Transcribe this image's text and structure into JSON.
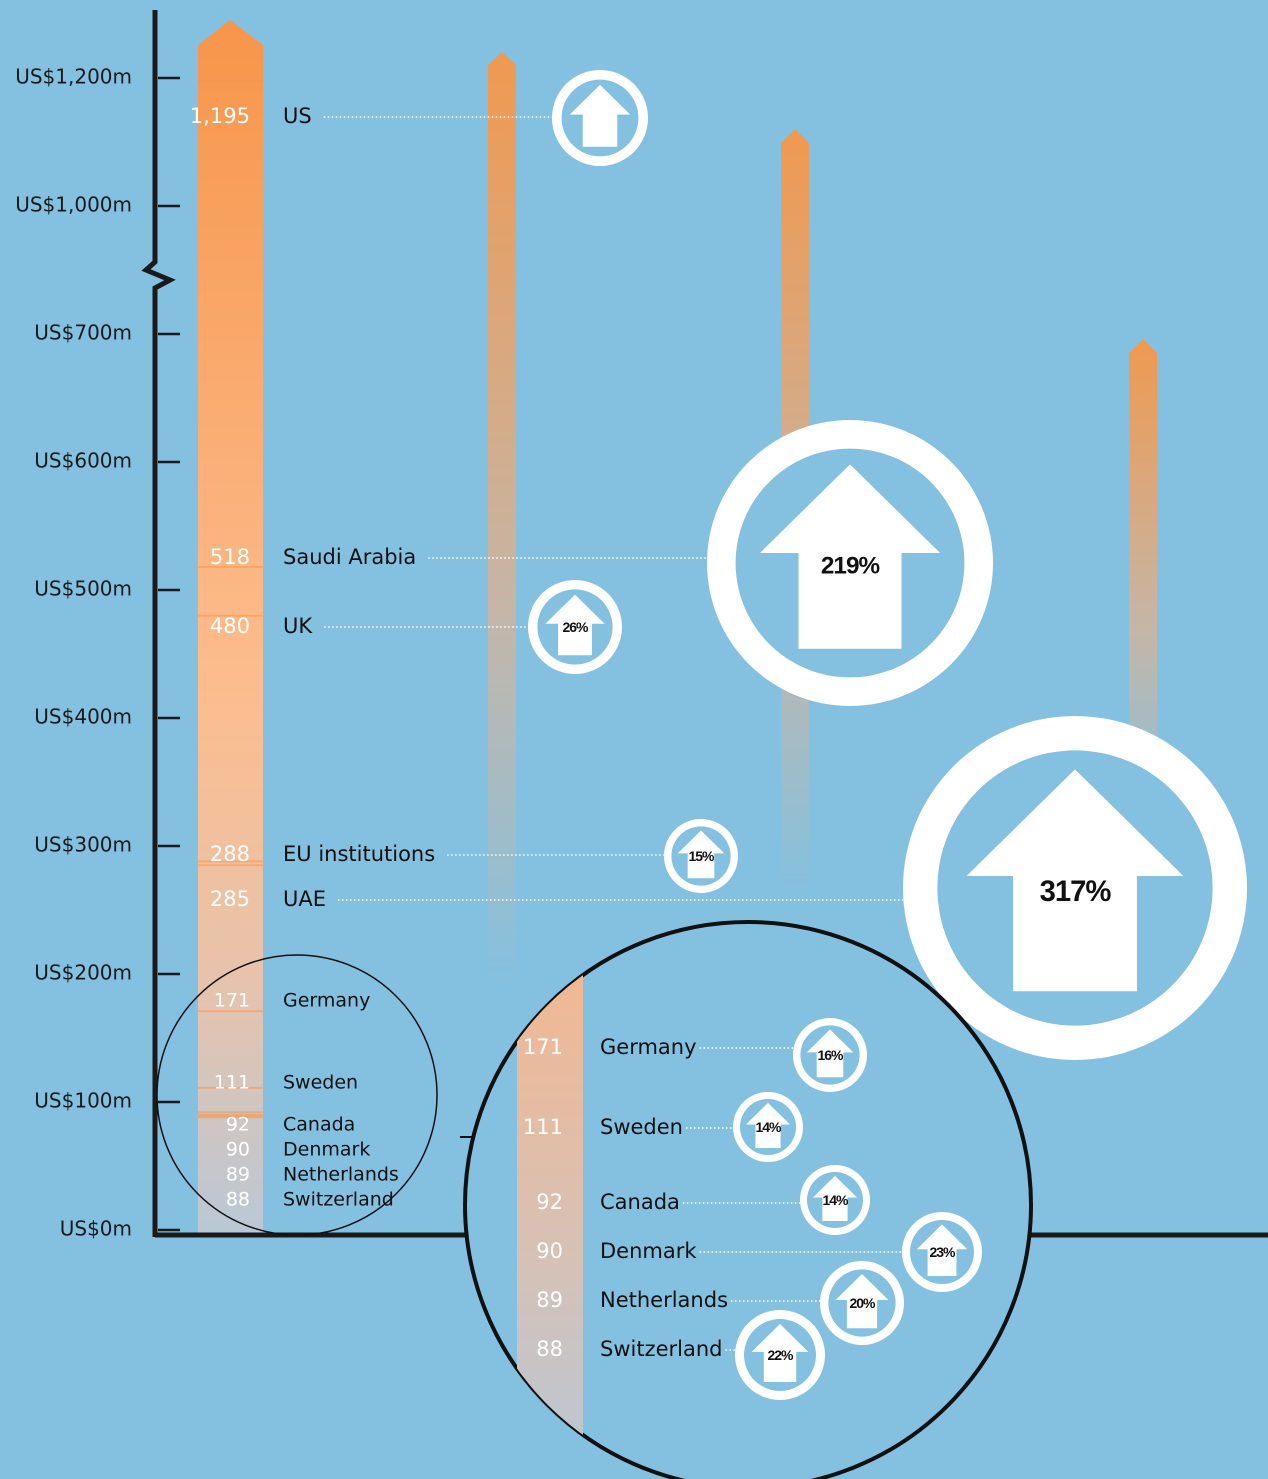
{
  "chart_data": {
    "type": "bar",
    "categories": [
      "US",
      "Saudi Arabia",
      "UK",
      "EU institutions",
      "UAE",
      "Germany",
      "Sweden",
      "Canada",
      "Denmark",
      "Netherlands",
      "Switzerland"
    ],
    "values": [
      1195,
      518,
      480,
      288,
      285,
      171,
      111,
      92,
      90,
      89,
      88
    ],
    "value_labels": [
      "1,195",
      "518",
      "480",
      "288",
      "285",
      "171",
      "111",
      "92",
      "90",
      "89",
      "88"
    ],
    "growth": [
      null,
      219,
      26,
      15,
      317,
      16,
      14,
      14,
      23,
      20,
      22
    ],
    "growth_labels": [
      null,
      "219%",
      "26%",
      "15%",
      "317%",
      "16%",
      "14%",
      "14%",
      "23%",
      "20%",
      "22%"
    ],
    "color": "#f7954a",
    "ylim": [
      0,
      1300
    ],
    "axis_break": [
      750,
      900
    ],
    "yticks": [
      {
        "value": 0,
        "label": "US$0m"
      },
      {
        "value": 100,
        "label": "US$100m"
      },
      {
        "value": 200,
        "label": "US$200m"
      },
      {
        "value": 300,
        "label": "US$300m"
      },
      {
        "value": 400,
        "label": "US$400m"
      },
      {
        "value": 500,
        "label": "US$500m"
      },
      {
        "value": 600,
        "label": "US$600m"
      },
      {
        "value": 700,
        "label": "US$700m"
      },
      {
        "value": 1000,
        "label": "US$1,000m"
      },
      {
        "value": 1200,
        "label": "US$1,200m"
      }
    ]
  }
}
